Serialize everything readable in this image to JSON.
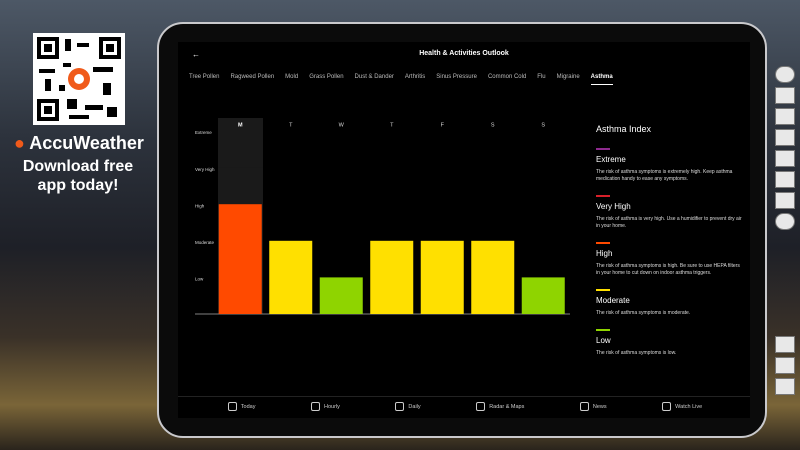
{
  "promo": {
    "brand": "AccuWeather",
    "tagline": [
      "Download free",
      "app today!"
    ]
  },
  "app": {
    "header": {
      "title": "Health & Activities Outlook"
    },
    "tabs": [
      "Tree Pollen",
      "Ragweed Pollen",
      "Mold",
      "Grass Pollen",
      "Dust & Dander",
      "Arthritis",
      "Sinus Pressure",
      "Common Cold",
      "Flu",
      "Migraine",
      "Asthma"
    ],
    "legend": {
      "title": "Asthma Index",
      "items": [
        {
          "name": "Extreme",
          "color": "#8e2a8e",
          "description": "The risk of asthma symptoms is extremely high. Keep asthma medication handy to ease any symptoms."
        },
        {
          "name": "Very High",
          "color": "#d8202a",
          "description": "The risk of asthma is very high. Use a humidifier to prevent dry air in your home."
        },
        {
          "name": "High",
          "color": "#ff4a00",
          "description": "The risk of asthma symptoms is high. Be sure to use HEPA filters in your home to cut down on indoor asthma triggers."
        },
        {
          "name": "Moderate",
          "color": "#ffe000",
          "description": "The risk of asthma symptoms is moderate."
        },
        {
          "name": "Low",
          "color": "#8fd400",
          "description": "The risk of asthma symptoms is low."
        }
      ]
    },
    "nav": [
      "Today",
      "Hourly",
      "Daily",
      "Radar & Maps",
      "News",
      "Watch Live"
    ]
  },
  "chart_data": {
    "type": "bar",
    "categories": [
      "M",
      "T",
      "W",
      "T",
      "F",
      "S",
      "S"
    ],
    "values": [
      3,
      2,
      1,
      2,
      2,
      2,
      1
    ],
    "colors": [
      "#ff4a00",
      "#ffe000",
      "#8fd400",
      "#ffe000",
      "#ffe000",
      "#ffe000",
      "#8fd400"
    ],
    "ylim": [
      0,
      5
    ],
    "yticks": [
      {
        "value": 5,
        "label": "Extreme"
      },
      {
        "value": 4,
        "label": "Very High"
      },
      {
        "value": 3,
        "label": "High"
      },
      {
        "value": 2,
        "label": "Moderate"
      },
      {
        "value": 1,
        "label": "Low"
      }
    ]
  }
}
